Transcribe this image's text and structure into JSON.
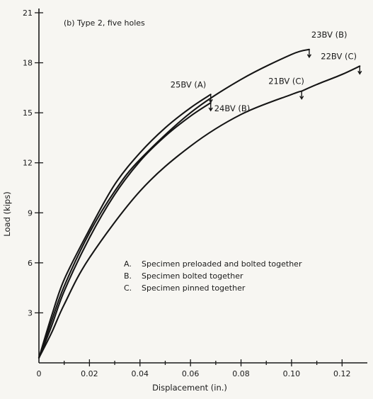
{
  "chart_data": {
    "type": "line",
    "title": "(b) Type 2, five holes",
    "xlabel": "Displacement (in.)",
    "ylabel": "Load (kips)",
    "xlim": [
      0,
      0.13
    ],
    "ylim": [
      0,
      21
    ],
    "x_ticks": [
      0,
      0.02,
      0.04,
      0.06,
      0.08,
      0.1,
      0.12
    ],
    "x_tick_labels": [
      "0",
      "0.02",
      "0.04",
      "0.06",
      "0.08",
      "0.10",
      "0.12"
    ],
    "y_ticks": [
      3,
      6,
      9,
      12,
      15,
      18,
      21
    ],
    "y_tick_labels": [
      "3",
      "6",
      "9",
      "12",
      "15",
      "18",
      "21"
    ],
    "grid": false,
    "series": [
      {
        "name": "25BV (A)",
        "x": [
          0,
          0.005,
          0.01,
          0.02,
          0.03,
          0.04,
          0.05,
          0.06,
          0.068
        ],
        "y": [
          0.3,
          2.8,
          5.0,
          8.0,
          10.7,
          12.6,
          14.1,
          15.3,
          16.1
        ],
        "failure_mark": {
          "x": 0.068,
          "y": 16.1
        }
      },
      {
        "name": "24BV (B)",
        "x": [
          0,
          0.005,
          0.01,
          0.02,
          0.03,
          0.04,
          0.05,
          0.06,
          0.068
        ],
        "y": [
          0.3,
          2.2,
          4.3,
          7.5,
          10.1,
          12.1,
          13.6,
          14.8,
          15.6
        ],
        "failure_mark": {
          "x": 0.068,
          "y": 15.6
        }
      },
      {
        "name": "23BV (B)",
        "x": [
          0,
          0.005,
          0.01,
          0.02,
          0.03,
          0.04,
          0.06,
          0.08,
          0.1,
          0.107
        ],
        "y": [
          0.3,
          2.5,
          4.6,
          7.8,
          10.3,
          12.2,
          15.0,
          17.0,
          18.5,
          18.8
        ],
        "failure_mark": {
          "x": 0.107,
          "y": 18.8
        }
      },
      {
        "name": "21BV (C)",
        "x": [
          0,
          0.005,
          0.01,
          0.02,
          0.04,
          0.06,
          0.08,
          0.1,
          0.104
        ],
        "y": [
          0.3,
          1.8,
          3.5,
          6.3,
          10.3,
          13.0,
          14.9,
          16.1,
          16.3
        ],
        "failure_mark": {
          "x": 0.104,
          "y": 16.3
        }
      },
      {
        "name": "22BV (C)",
        "x": [
          0.104,
          0.11,
          0.12,
          0.127
        ],
        "y": [
          16.3,
          16.7,
          17.3,
          17.8
        ],
        "failure_mark": {
          "x": 0.127,
          "y": 17.8
        }
      }
    ],
    "legend": {
      "placement": "lower-center",
      "entries": [
        {
          "key": "A.",
          "text": "Specimen preloaded and bolted together"
        },
        {
          "key": "B.",
          "text": "Specimen bolted together"
        },
        {
          "key": "C.",
          "text": "Specimen pinned together"
        }
      ]
    }
  }
}
